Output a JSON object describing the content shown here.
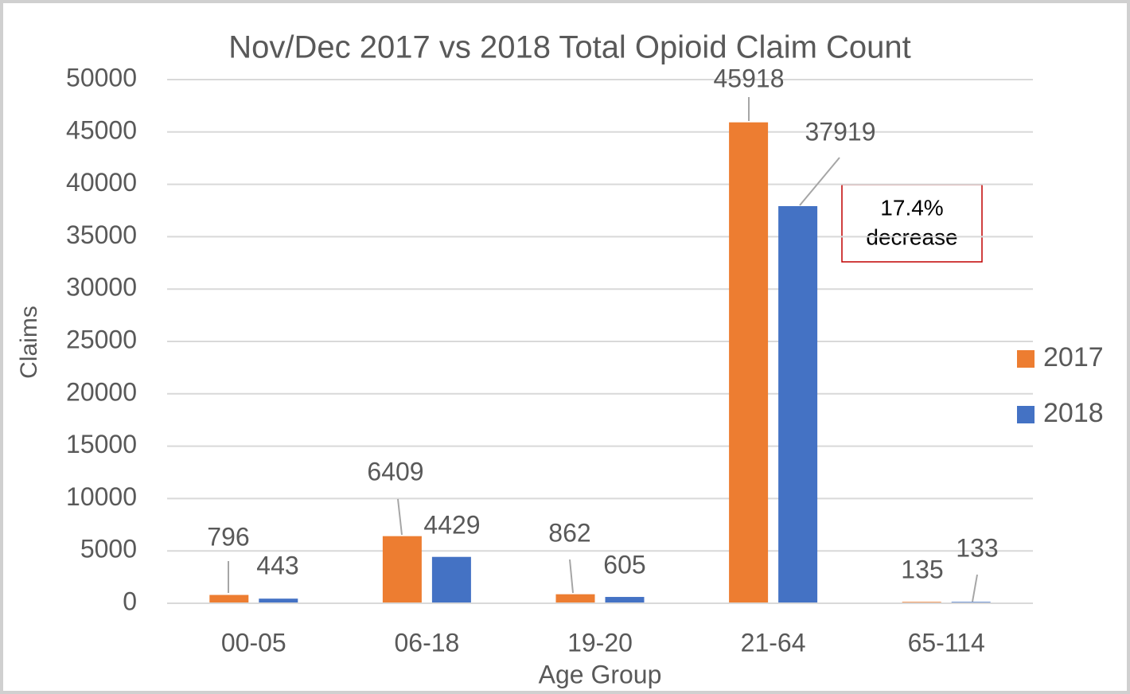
{
  "chart_data": {
    "type": "bar",
    "title": "Nov/Dec 2017 vs 2018 Total Opioid Claim Count",
    "x_label": "Age Group",
    "y_label": "Claims",
    "categories": [
      "00-05",
      "06-18",
      "19-20",
      "21-64",
      "65-114"
    ],
    "series": [
      {
        "name": "2017",
        "color": "#ed7d31",
        "values": [
          796,
          6409,
          862,
          45918,
          135
        ]
      },
      {
        "name": "2018",
        "color": "#4472c4",
        "values": [
          443,
          4429,
          605,
          37919,
          133
        ]
      }
    ],
    "ylim": [
      0,
      50000
    ],
    "yticks": [
      0,
      5000,
      10000,
      15000,
      20000,
      25000,
      30000,
      35000,
      40000,
      45000,
      50000
    ],
    "grid": true,
    "legend": "right",
    "annotation": [
      "17.4%",
      "decrease"
    ]
  }
}
